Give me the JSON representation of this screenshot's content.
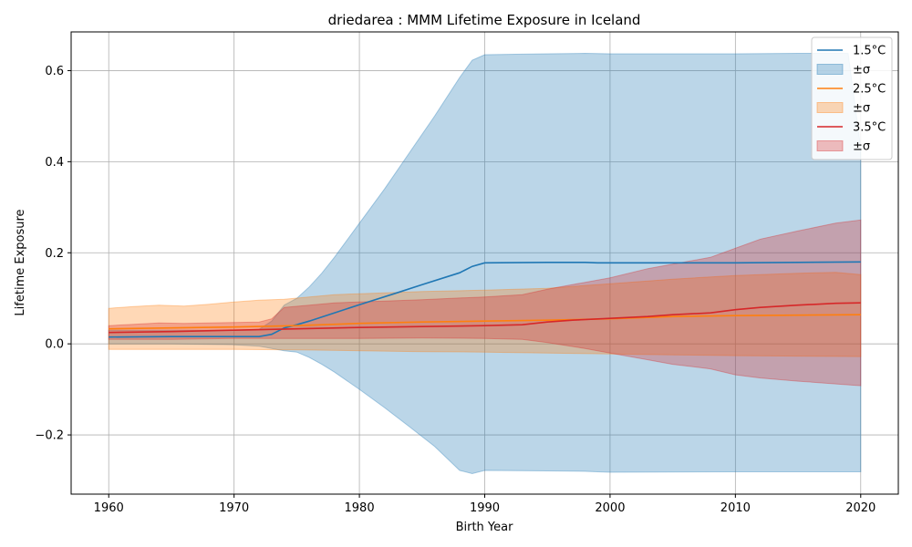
{
  "chart_data": {
    "type": "line",
    "title": "driedarea : MMM Lifetime Exposure in Iceland",
    "xlabel": "Birth Year",
    "ylabel": "Lifetime Exposure",
    "xlim": [
      1957,
      2023
    ],
    "ylim": [
      -0.33,
      0.685
    ],
    "x_ticks": [
      1960,
      1970,
      1980,
      1990,
      2000,
      2010,
      2020
    ],
    "y_ticks": [
      -0.2,
      0.0,
      0.2,
      0.4,
      0.6
    ],
    "y_tick_labels": [
      "−0.2",
      "0.0",
      "0.2",
      "0.4",
      "0.6"
    ],
    "grid": true,
    "legend_position": "top-right",
    "band_label": "±σ",
    "series": [
      {
        "name": "1.5°C",
        "color": "#1f77b4",
        "band_color": "#1f77b4",
        "mean": [
          [
            1960,
            0.015
          ],
          [
            1965,
            0.016
          ],
          [
            1970,
            0.016
          ],
          [
            1972,
            0.016
          ],
          [
            1973,
            0.021
          ],
          [
            1974,
            0.035
          ],
          [
            1975,
            0.042
          ],
          [
            1976,
            0.05
          ],
          [
            1978,
            0.068
          ],
          [
            1980,
            0.086
          ],
          [
            1983,
            0.112
          ],
          [
            1985,
            0.13
          ],
          [
            1988,
            0.156
          ],
          [
            1989,
            0.17
          ],
          [
            1990,
            0.178
          ],
          [
            1995,
            0.179
          ],
          [
            1998,
            0.179
          ],
          [
            1999,
            0.178
          ],
          [
            2005,
            0.178
          ],
          [
            2010,
            0.178
          ],
          [
            2015,
            0.179
          ],
          [
            2020,
            0.18
          ]
        ],
        "upper": [
          [
            1960,
            0.03
          ],
          [
            1965,
            0.03
          ],
          [
            1970,
            0.03
          ],
          [
            1972,
            0.032
          ],
          [
            1973,
            0.05
          ],
          [
            1974,
            0.085
          ],
          [
            1975,
            0.1
          ],
          [
            1976,
            0.125
          ],
          [
            1977,
            0.155
          ],
          [
            1978,
            0.19
          ],
          [
            1980,
            0.265
          ],
          [
            1982,
            0.34
          ],
          [
            1984,
            0.42
          ],
          [
            1986,
            0.5
          ],
          [
            1988,
            0.585
          ],
          [
            1989,
            0.623
          ],
          [
            1990,
            0.635
          ],
          [
            1995,
            0.637
          ],
          [
            1998,
            0.638
          ],
          [
            2000,
            0.637
          ],
          [
            2010,
            0.637
          ],
          [
            2015,
            0.638
          ],
          [
            2019,
            0.638
          ],
          [
            2020,
            0.43
          ]
        ],
        "lower": [
          [
            1960,
            0.0
          ],
          [
            1965,
            0.0
          ],
          [
            1970,
            -0.002
          ],
          [
            1972,
            -0.005
          ],
          [
            1973,
            -0.01
          ],
          [
            1974,
            -0.015
          ],
          [
            1975,
            -0.018
          ],
          [
            1976,
            -0.03
          ],
          [
            1977,
            -0.045
          ],
          [
            1978,
            -0.062
          ],
          [
            1980,
            -0.1
          ],
          [
            1982,
            -0.14
          ],
          [
            1984,
            -0.182
          ],
          [
            1986,
            -0.225
          ],
          [
            1988,
            -0.278
          ],
          [
            1989,
            -0.285
          ],
          [
            1990,
            -0.278
          ],
          [
            1995,
            -0.279
          ],
          [
            1998,
            -0.28
          ],
          [
            2000,
            -0.282
          ],
          [
            2010,
            -0.281
          ],
          [
            2015,
            -0.281
          ],
          [
            2020,
            -0.281
          ]
        ]
      },
      {
        "name": "2.5°C",
        "color": "#ff7f0e",
        "band_color": "#ff7f0e",
        "mean": [
          [
            1960,
            0.033
          ],
          [
            1965,
            0.035
          ],
          [
            1970,
            0.037
          ],
          [
            1975,
            0.04
          ],
          [
            1980,
            0.045
          ],
          [
            1985,
            0.048
          ],
          [
            1990,
            0.05
          ],
          [
            1995,
            0.052
          ],
          [
            2000,
            0.055
          ],
          [
            2005,
            0.06
          ],
          [
            2010,
            0.062
          ],
          [
            2015,
            0.063
          ],
          [
            2020,
            0.064
          ]
        ],
        "upper": [
          [
            1960,
            0.078
          ],
          [
            1962,
            0.082
          ],
          [
            1964,
            0.085
          ],
          [
            1966,
            0.083
          ],
          [
            1968,
            0.087
          ],
          [
            1970,
            0.092
          ],
          [
            1972,
            0.096
          ],
          [
            1974,
            0.098
          ],
          [
            1976,
            0.103
          ],
          [
            1978,
            0.108
          ],
          [
            1980,
            0.11
          ],
          [
            1985,
            0.115
          ],
          [
            1990,
            0.118
          ],
          [
            1995,
            0.122
          ],
          [
            2000,
            0.132
          ],
          [
            2003,
            0.138
          ],
          [
            2005,
            0.142
          ],
          [
            2010,
            0.15
          ],
          [
            2015,
            0.155
          ],
          [
            2018,
            0.157
          ],
          [
            2020,
            0.152
          ]
        ],
        "lower": [
          [
            1960,
            -0.012
          ],
          [
            1965,
            -0.012
          ],
          [
            1970,
            -0.012
          ],
          [
            1975,
            -0.013
          ],
          [
            1980,
            -0.015
          ],
          [
            1985,
            -0.017
          ],
          [
            1990,
            -0.018
          ],
          [
            1995,
            -0.02
          ],
          [
            2000,
            -0.022
          ],
          [
            2005,
            -0.024
          ],
          [
            2010,
            -0.026
          ],
          [
            2015,
            -0.027
          ],
          [
            2020,
            -0.028
          ]
        ]
      },
      {
        "name": "3.5°C",
        "color": "#d62728",
        "band_color": "#d62728",
        "mean": [
          [
            1960,
            0.025
          ],
          [
            1965,
            0.027
          ],
          [
            1970,
            0.03
          ],
          [
            1975,
            0.033
          ],
          [
            1980,
            0.036
          ],
          [
            1985,
            0.038
          ],
          [
            1990,
            0.04
          ],
          [
            1993,
            0.042
          ],
          [
            1995,
            0.048
          ],
          [
            1997,
            0.052
          ],
          [
            2000,
            0.056
          ],
          [
            2003,
            0.06
          ],
          [
            2005,
            0.064
          ],
          [
            2008,
            0.068
          ],
          [
            2010,
            0.075
          ],
          [
            2012,
            0.08
          ],
          [
            2015,
            0.085
          ],
          [
            2018,
            0.089
          ],
          [
            2020,
            0.09
          ]
        ],
        "upper": [
          [
            1960,
            0.04
          ],
          [
            1962,
            0.043
          ],
          [
            1964,
            0.046
          ],
          [
            1966,
            0.045
          ],
          [
            1968,
            0.046
          ],
          [
            1970,
            0.047
          ],
          [
            1972,
            0.048
          ],
          [
            1973,
            0.055
          ],
          [
            1974,
            0.08
          ],
          [
            1976,
            0.085
          ],
          [
            1978,
            0.09
          ],
          [
            1980,
            0.092
          ],
          [
            1985,
            0.097
          ],
          [
            1990,
            0.103
          ],
          [
            1993,
            0.108
          ],
          [
            1995,
            0.12
          ],
          [
            1998,
            0.135
          ],
          [
            2000,
            0.145
          ],
          [
            2003,
            0.165
          ],
          [
            2005,
            0.175
          ],
          [
            2008,
            0.19
          ],
          [
            2010,
            0.21
          ],
          [
            2012,
            0.23
          ],
          [
            2015,
            0.248
          ],
          [
            2018,
            0.265
          ],
          [
            2020,
            0.272
          ]
        ],
        "lower": [
          [
            1960,
            0.01
          ],
          [
            1965,
            0.01
          ],
          [
            1970,
            0.012
          ],
          [
            1975,
            0.012
          ],
          [
            1980,
            0.012
          ],
          [
            1985,
            0.013
          ],
          [
            1990,
            0.012
          ],
          [
            1993,
            0.01
          ],
          [
            1995,
            0.003
          ],
          [
            1998,
            -0.01
          ],
          [
            2000,
            -0.02
          ],
          [
            2003,
            -0.035
          ],
          [
            2005,
            -0.045
          ],
          [
            2008,
            -0.055
          ],
          [
            2010,
            -0.068
          ],
          [
            2012,
            -0.075
          ],
          [
            2015,
            -0.082
          ],
          [
            2018,
            -0.088
          ],
          [
            2020,
            -0.092
          ]
        ]
      }
    ]
  }
}
